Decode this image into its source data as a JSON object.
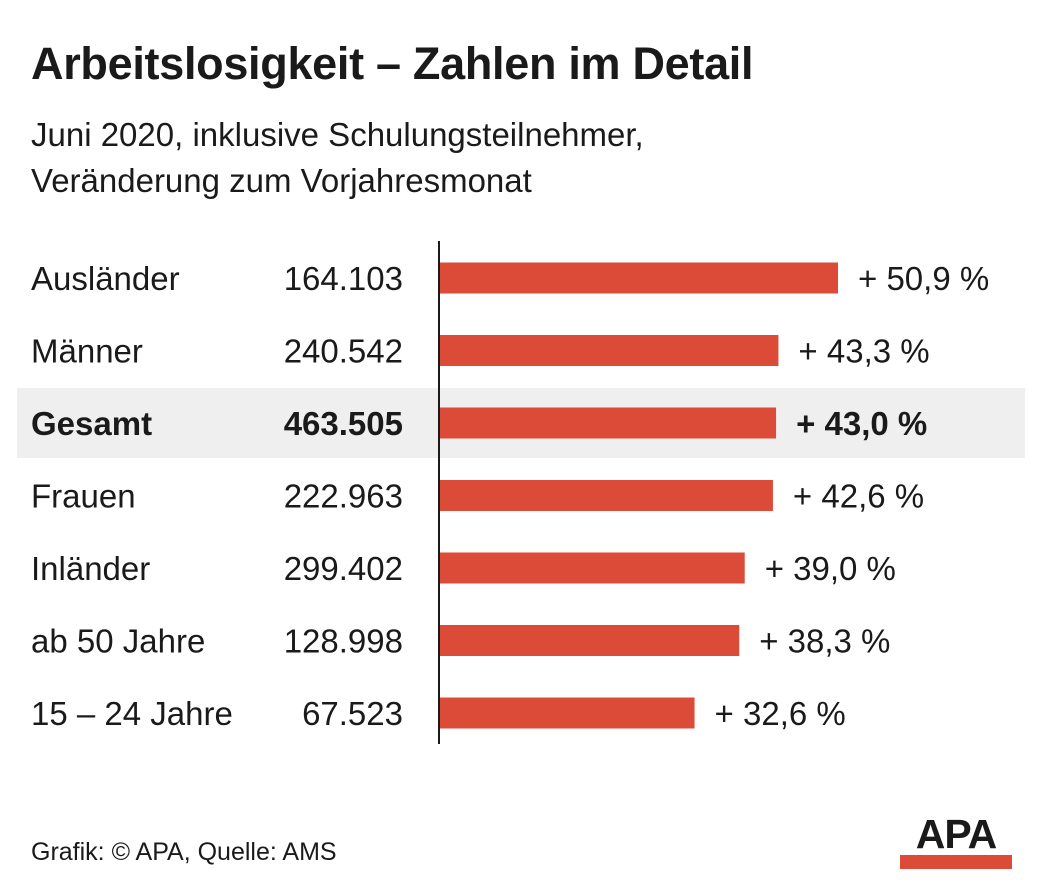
{
  "header": {
    "title": "Arbeitslosigkeit – Zahlen im Detail",
    "subtitle_line1": "Juni 2020, inklusive Schulungsteilnehmer,",
    "subtitle_line2": "Veränderung zum Vorjahresmonat"
  },
  "chart_data": {
    "type": "bar",
    "orientation": "horizontal",
    "categories": [
      "Ausländer",
      "Männer",
      "Gesamt",
      "Frauen",
      "Inländer",
      "ab 50 Jahre",
      "15 – 24 Jahre"
    ],
    "counts": [
      "164.103",
      "240.542",
      "463.505",
      "222.963",
      "299.402",
      "128.998",
      "67.523"
    ],
    "values": [
      50.9,
      43.3,
      43.0,
      42.6,
      39.0,
      38.3,
      32.6
    ],
    "value_labels": [
      "+ 50,9 %",
      "+ 43,3 %",
      "+ 43,0 %",
      "+ 42,6 %",
      "+ 39,0 %",
      "+ 38,3 %",
      "+ 32,6 %"
    ],
    "highlight_category": "Gesamt",
    "xlim": [
      0,
      50.9
    ],
    "grid": false,
    "colors": {
      "bar": "#dc4b38",
      "highlight_row_background": "#efefef",
      "axis": "#1a1a1a"
    }
  },
  "footer": {
    "credit": "Grafik: © APA, Quelle: AMS"
  },
  "logo": {
    "text": "APA",
    "underline_color": "#dc4b38"
  }
}
